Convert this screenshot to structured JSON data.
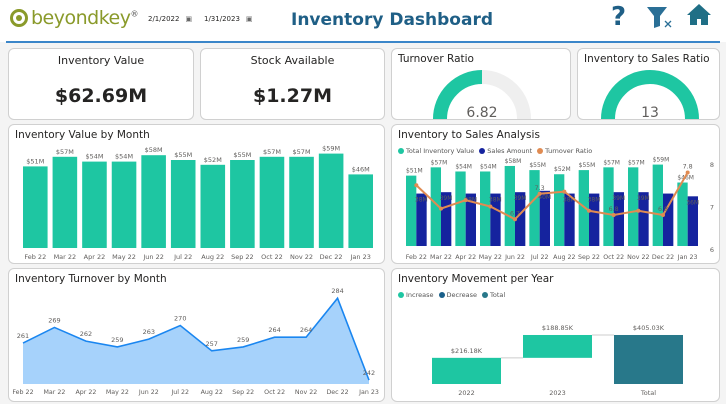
{
  "header": {
    "logo_text": "beyondkey",
    "logo_mark": "®",
    "start_date": "2/1/2022",
    "end_date": "1/31/2023",
    "title": "Inventory Dashboard",
    "icons": [
      "help-icon",
      "clear-filter-icon",
      "home-icon"
    ]
  },
  "colors": {
    "teal": "#1ec6a2",
    "navy": "#15239e",
    "orange": "#e08b52",
    "total": "#28788a",
    "area_fill": "#a6d2fb",
    "area_line": "#1a86f0",
    "accent": "#1f5f86"
  },
  "kpis": {
    "inventory_value": {
      "label": "Inventory Value",
      "value": "$62.69M"
    },
    "stock_available": {
      "label": "Stock Available",
      "value": "$1.27M"
    }
  },
  "gauges": {
    "turnover": {
      "label": "Turnover Ratio",
      "value": "6.82",
      "fill": 0.5
    },
    "inv_sales": {
      "label": "Inventory to Sales Ratio",
      "value": "13",
      "fill": 1.0
    }
  },
  "chart_data": [
    {
      "type": "bar",
      "title": "Inventory Value by Month",
      "categories": [
        "Feb 22",
        "Mar 22",
        "Apr 22",
        "May 22",
        "Jun 22",
        "Jul 22",
        "Aug 22",
        "Sep 22",
        "Oct 22",
        "Nov 22",
        "Dec 22",
        "Jan 23"
      ],
      "values": [
        51,
        57,
        54,
        54,
        58,
        55,
        52,
        55,
        57,
        57,
        59,
        46
      ],
      "labels": [
        "$51M",
        "$57M",
        "$54M",
        "$54M",
        "$58M",
        "$55M",
        "$52M",
        "$55M",
        "$57M",
        "$57M",
        "$59M",
        "$46M"
      ]
    },
    {
      "type": "bar+line",
      "title": "Inventory to Sales Analysis",
      "categories": [
        "Feb 22",
        "Mar 22",
        "Apr 22",
        "May 22",
        "Jun 22",
        "Jul 22",
        "Aug 22",
        "Sep 22",
        "Oct 22",
        "Nov 22",
        "Dec 22",
        "Jan 23"
      ],
      "series": [
        {
          "name": "Total Inventory Value",
          "values": [
            51,
            57,
            54,
            54,
            58,
            55,
            52,
            55,
            57,
            57,
            59,
            46
          ],
          "labels": [
            "$51M",
            "$57M",
            "$54M",
            "$54M",
            "$58M",
            "$55M",
            "$52M",
            "$55M",
            "$57M",
            "$57M",
            "$59M",
            "$46M"
          ]
        },
        {
          "name": "Sales Amount",
          "values": [
            38,
            39,
            38,
            38,
            39,
            40,
            38,
            38,
            39,
            39,
            38,
            36
          ],
          "labels": [
            "38M",
            "39M",
            "38M",
            "38M",
            "39M",
            "40M",
            "38M",
            "38M",
            "39M",
            "39M",
            "",
            "36M"
          ]
        },
        {
          "name": "Turnover Ratio",
          "axis": "right",
          "values": [
            7.5,
            6.95,
            7.15,
            7.0,
            6.7,
            7.3,
            7.35,
            6.9,
            6.8,
            6.9,
            6.8,
            7.8
          ],
          "labels": [
            "",
            "",
            "",
            "",
            "6.7",
            "7.3",
            "",
            "",
            "6.8",
            "",
            "6.8",
            "7.8"
          ]
        }
      ],
      "y2_ticks": [
        "6",
        "7",
        "8"
      ],
      "y2lim": [
        6,
        8
      ]
    },
    {
      "type": "area",
      "title": "Inventory Turnover by Month",
      "categories": [
        "Feb 22",
        "Mar 22",
        "Apr 22",
        "May 22",
        "Jun 22",
        "Jul 22",
        "Aug 22",
        "Sep 22",
        "Oct 22",
        "Nov 22",
        "Dec 22",
        "Jan 23"
      ],
      "values": [
        261,
        269,
        262,
        259,
        263,
        270,
        257,
        259,
        264,
        264,
        284,
        242
      ]
    },
    {
      "type": "waterfall",
      "title": "Inventory Movement per Year",
      "legend": [
        "Increase",
        "Decrease",
        "Total"
      ],
      "categories": [
        "2022",
        "2023",
        "Total"
      ],
      "values": [
        216.18,
        188.85,
        405.03
      ],
      "kinds": [
        "increase",
        "increase",
        "total"
      ],
      "labels": [
        "$216.18K",
        "$188.85K",
        "$405.03K"
      ]
    }
  ]
}
